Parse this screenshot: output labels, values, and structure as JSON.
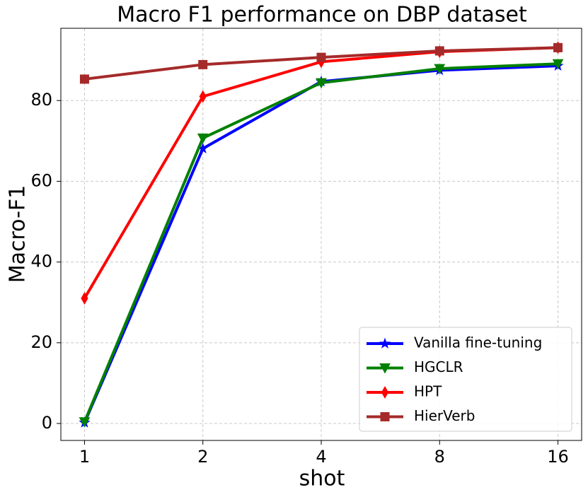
{
  "chart_data": {
    "type": "line",
    "title": "Macro F1 performance on DBP dataset",
    "x_label": "shot",
    "y_label": "Macro-F1",
    "categories": [
      "1",
      "2",
      "4",
      "8",
      "16"
    ],
    "series": [
      {
        "name": "Vanilla fine-tuning",
        "color": "#0000ff",
        "marker": "star",
        "values": [
          0.2,
          68.1,
          84.7,
          87.5,
          88.6
        ]
      },
      {
        "name": "HGCLR",
        "color": "#008000",
        "marker": "triangle-down",
        "values": [
          0.4,
          70.7,
          84.4,
          87.9,
          89.1
        ]
      },
      {
        "name": "HPT",
        "color": "#ff0000",
        "marker": "thin-diamond",
        "values": [
          31.0,
          81.0,
          89.6,
          92.1,
          93.1
        ]
      },
      {
        "name": "HierVerb",
        "color": "#a52a2a",
        "marker": "square",
        "values": [
          85.3,
          88.9,
          90.7,
          92.3,
          93.1
        ]
      }
    ],
    "ylim": [
      -4.2,
      97.9
    ],
    "yticks": [
      0,
      20,
      40,
      60,
      80
    ],
    "grid": true,
    "legend": "lower right"
  }
}
